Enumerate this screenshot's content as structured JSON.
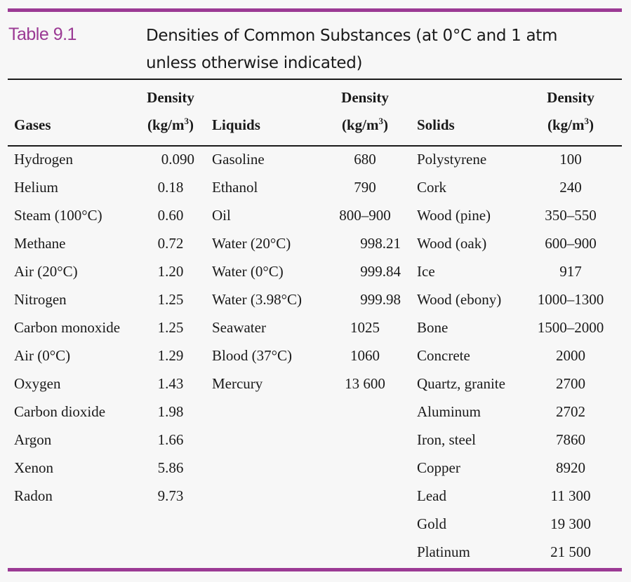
{
  "colors": {
    "accent": "#9b3a94",
    "text": "#1a1a1a",
    "background": "#f7f7f7"
  },
  "table": {
    "number": "Table 9.1",
    "title": "Densities of Common Substances (at 0°C and 1 atm unless otherwise indicated)"
  },
  "headers": {
    "density_word": "Density",
    "unit_prefix": "(kg/m",
    "unit_exp": "3",
    "unit_suffix": ")",
    "gases": "Gases",
    "liquids": "Liquids",
    "solids": "Solids"
  },
  "gases": [
    {
      "name": "Hydrogen",
      "density": "0.090"
    },
    {
      "name": "Helium",
      "density": "0.18"
    },
    {
      "name": "Steam (100°C)",
      "density": "0.60"
    },
    {
      "name": "Methane",
      "density": "0.72"
    },
    {
      "name": "Air (20°C)",
      "density": "1.20"
    },
    {
      "name": "Nitrogen",
      "density": "1.25"
    },
    {
      "name": "Carbon monoxide",
      "density": "1.25"
    },
    {
      "name": "Air (0°C)",
      "density": "1.29"
    },
    {
      "name": "Oxygen",
      "density": "1.43"
    },
    {
      "name": "Carbon dioxide",
      "density": "1.98"
    },
    {
      "name": "Argon",
      "density": "1.66"
    },
    {
      "name": "Xenon",
      "density": "5.86"
    },
    {
      "name": "Radon",
      "density": "9.73"
    }
  ],
  "liquids": [
    {
      "name": "Gasoline",
      "density": "680"
    },
    {
      "name": "Ethanol",
      "density": "790"
    },
    {
      "name": "Oil",
      "density": "800–900"
    },
    {
      "name": "Water (20°C)",
      "density": "998.21"
    },
    {
      "name": "Water (0°C)",
      "density": "999.84"
    },
    {
      "name": "Water (3.98°C)",
      "density": "999.98"
    },
    {
      "name": "Seawater",
      "density": "1025"
    },
    {
      "name": "Blood (37°C)",
      "density": "1060"
    },
    {
      "name": "Mercury",
      "density": "13 600"
    }
  ],
  "solids": [
    {
      "name": "Polystyrene",
      "density": "100"
    },
    {
      "name": "Cork",
      "density": "240"
    },
    {
      "name": "Wood (pine)",
      "density": "350–550"
    },
    {
      "name": "Wood (oak)",
      "density": "600–900"
    },
    {
      "name": "Ice",
      "density": "917"
    },
    {
      "name": "Wood (ebony)",
      "density": "1000–1300"
    },
    {
      "name": "Bone",
      "density": "1500–2000"
    },
    {
      "name": "Concrete",
      "density": "2000"
    },
    {
      "name": "Quartz, granite",
      "density": "2700"
    },
    {
      "name": "Aluminum",
      "density": "2702"
    },
    {
      "name": "Iron, steel",
      "density": "7860"
    },
    {
      "name": "Copper",
      "density": "8920"
    },
    {
      "name": "Lead",
      "density": "11 300"
    },
    {
      "name": "Gold",
      "density": "19 300"
    },
    {
      "name": "Platinum",
      "density": "21 500"
    }
  ]
}
